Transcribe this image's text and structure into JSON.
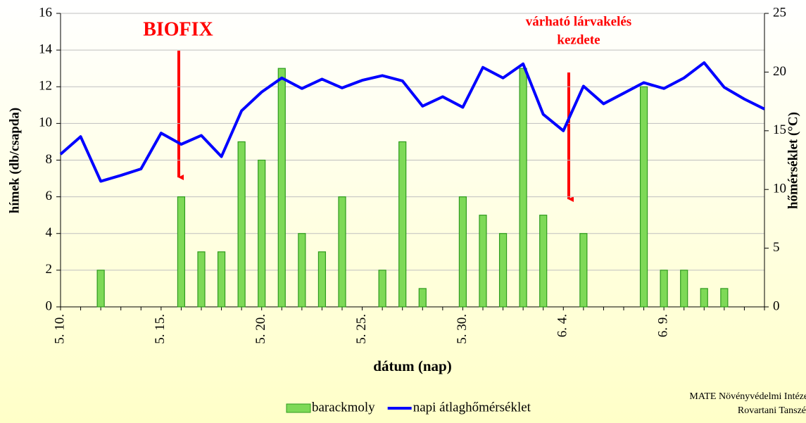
{
  "chart_data": {
    "type": "bar_line",
    "annotations": [
      "BIOFIX",
      "várható lárvakelés",
      "kezdete"
    ],
    "xlabel": "dátum (nap)",
    "ylabel": "hímek (db/csapda)",
    "y2label": "hőmérséklet (°C)",
    "credit": [
      "MATE Növényvédelmi Intézet",
      "Rovartani Tanszék"
    ],
    "categories": [
      "5. 10.",
      null,
      null,
      null,
      null,
      "5. 15.",
      null,
      null,
      null,
      null,
      "5. 20.",
      null,
      null,
      null,
      null,
      "5. 25.",
      null,
      null,
      null,
      null,
      "5. 30.",
      null,
      null,
      null,
      null,
      "6. 4.",
      null,
      null,
      null,
      null,
      "6. 9.",
      null,
      null,
      null,
      null,
      null
    ],
    "series": [
      {
        "name": "barackmoly",
        "type": "bar",
        "color": "#7ed957",
        "values": [
          0,
          0,
          2,
          0,
          0,
          0,
          6,
          3,
          3,
          9,
          8,
          13,
          4,
          3,
          6,
          0,
          2,
          9,
          1,
          0,
          6,
          5,
          4,
          13,
          5,
          0,
          4,
          0,
          0,
          12,
          2,
          2,
          1,
          1,
          0,
          0
        ]
      },
      {
        "name": "napi átlaghőmérséklet",
        "type": "line",
        "axis": "y2",
        "color": "#0000ff",
        "values": [
          13.0,
          14.5,
          10.7,
          11.2,
          11.75,
          14.8,
          13.85,
          14.6,
          12.8,
          16.7,
          18.3,
          19.5,
          18.6,
          19.4,
          18.65,
          19.3,
          19.7,
          19.25,
          17.1,
          17.9,
          17.0,
          20.4,
          19.5,
          20.7,
          16.4,
          15.0,
          18.8,
          17.3,
          18.2,
          19.1,
          18.6,
          19.5,
          20.8,
          18.7,
          17.7,
          16.85
        ]
      }
    ],
    "ylim": [
      0,
      16
    ],
    "yticks": [
      0,
      2,
      4,
      6,
      8,
      10,
      12,
      14,
      16
    ],
    "y2lim": [
      0,
      25
    ],
    "y2ticks": [
      0,
      5,
      10,
      15,
      20,
      25
    ],
    "grid": true,
    "legend": "bottom"
  }
}
